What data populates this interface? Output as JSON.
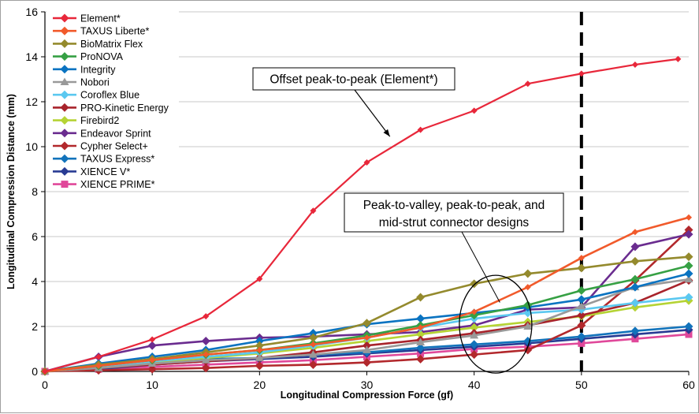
{
  "chart_data": {
    "type": "line",
    "title": "",
    "xlabel": "Longitudinal Compression Force (gf)",
    "ylabel": "Longitudinal Compression Distance (mm)",
    "xlim": [
      0,
      60
    ],
    "ylim": [
      0,
      16
    ],
    "xticks": [
      0,
      10,
      20,
      30,
      40,
      50,
      60
    ],
    "yticks": [
      0,
      2,
      4,
      6,
      8,
      10,
      12,
      14,
      16
    ],
    "grid": "horizontal",
    "legend_position": "top-left",
    "reference_line": {
      "x": 50,
      "style": "dashed",
      "color": "#000000"
    },
    "annotations": [
      {
        "text": "Offset peak-to-peak (Element*)",
        "points_to_series": "Element*",
        "target": [
          32,
          10.1
        ]
      },
      {
        "text_lines": [
          "Peak-to-valley, peak-to-peak, and",
          "mid-strut connector designs"
        ],
        "circle_center": [
          42,
          2.1
        ],
        "target": [
          42.4,
          3.0
        ]
      }
    ],
    "series": [
      {
        "name": "Element*",
        "color": "#e8273a",
        "marker": "diamond-small",
        "x": [
          0,
          5,
          10,
          15,
          20,
          25,
          30,
          35,
          40,
          45,
          50,
          55,
          59
        ],
        "y": [
          0,
          0.65,
          1.42,
          2.45,
          4.12,
          7.15,
          9.3,
          10.75,
          11.6,
          12.8,
          13.25,
          13.65,
          13.9
        ]
      },
      {
        "name": "TAXUS Liberte*",
        "color": "#f15a2b",
        "marker": "diamond-small",
        "x": [
          0,
          5,
          10,
          15,
          20,
          25,
          30,
          35,
          40,
          45,
          50,
          55,
          60
        ],
        "y": [
          0,
          0.25,
          0.5,
          0.75,
          0.95,
          1.2,
          1.5,
          1.95,
          2.65,
          3.75,
          5.05,
          6.2,
          6.85
        ]
      },
      {
        "name": "BioMatrix Flex",
        "color": "#948a2d",
        "marker": "diamond",
        "x": [
          0,
          5,
          10,
          15,
          20,
          25,
          30,
          35,
          40,
          45,
          50,
          55,
          60
        ],
        "y": [
          0,
          0.3,
          0.55,
          0.85,
          1.15,
          1.5,
          2.15,
          3.3,
          3.9,
          4.35,
          4.6,
          4.9,
          5.1
        ]
      },
      {
        "name": "ProNOVA",
        "color": "#36a044",
        "marker": "diamond",
        "x": [
          0,
          5,
          10,
          15,
          20,
          25,
          30,
          35,
          40,
          45,
          50,
          55,
          60
        ],
        "y": [
          0,
          0.25,
          0.5,
          0.75,
          0.95,
          1.25,
          1.6,
          2.05,
          2.5,
          2.95,
          3.6,
          4.1,
          4.7
        ]
      },
      {
        "name": "Integrity",
        "color": "#0a73c1",
        "marker": "diamond",
        "x": [
          0,
          5,
          10,
          15,
          20,
          25,
          30,
          35,
          40,
          45,
          50,
          55,
          60
        ],
        "y": [
          0,
          0.35,
          0.65,
          0.95,
          1.35,
          1.7,
          2.1,
          2.35,
          2.6,
          2.85,
          3.2,
          3.75,
          4.35
        ]
      },
      {
        "name": "Nobori",
        "color": "#999999",
        "marker": "triangle",
        "x": [
          0,
          5,
          10,
          15,
          20,
          25,
          30,
          35,
          40,
          45,
          50,
          55,
          60
        ],
        "y": [
          0,
          0.15,
          0.35,
          0.5,
          0.6,
          0.75,
          0.95,
          1.3,
          1.6,
          2.0,
          2.9,
          3.75,
          4.1
        ]
      },
      {
        "name": "Coroflex Blue",
        "color": "#5bc8f0",
        "marker": "diamond",
        "x": [
          0,
          5,
          10,
          15,
          20,
          25,
          30,
          35,
          40,
          45,
          50,
          55,
          60
        ],
        "y": [
          0,
          0.2,
          0.45,
          0.65,
          0.85,
          1.15,
          1.5,
          1.95,
          2.35,
          2.6,
          2.75,
          3.05,
          3.3
        ]
      },
      {
        "name": "PRO-Kinetic Energy",
        "color": "#a8232b",
        "marker": "diamond",
        "x": [
          0,
          5,
          10,
          15,
          20,
          25,
          30,
          35,
          40,
          45,
          50,
          55,
          60
        ],
        "y": [
          0,
          0.15,
          0.3,
          0.45,
          0.6,
          0.85,
          1.15,
          1.4,
          1.7,
          2.05,
          2.5,
          3.05,
          4.05
        ]
      },
      {
        "name": "Firebird2",
        "color": "#b5d334",
        "marker": "diamond",
        "x": [
          0,
          5,
          10,
          15,
          20,
          25,
          30,
          35,
          40,
          45,
          50,
          55,
          60
        ],
        "y": [
          0,
          0.15,
          0.4,
          0.6,
          0.8,
          1.05,
          1.35,
          1.65,
          1.95,
          2.2,
          2.45,
          2.85,
          3.15
        ]
      },
      {
        "name": "Endeavor Sprint",
        "color": "#6a2c8f",
        "marker": "diamond",
        "x": [
          0,
          5,
          10,
          15,
          20,
          25,
          30,
          35,
          40,
          45,
          50,
          55,
          60
        ],
        "y": [
          0,
          0.65,
          1.15,
          1.35,
          1.5,
          1.55,
          1.65,
          1.75,
          2.05,
          2.75,
          2.85,
          5.55,
          6.1
        ]
      },
      {
        "name": "Cypher Select+",
        "color": "#b2282c",
        "marker": "diamond",
        "x": [
          0,
          5,
          10,
          15,
          20,
          25,
          30,
          35,
          40,
          45,
          50,
          55,
          60
        ],
        "y": [
          0,
          0.05,
          0.1,
          0.15,
          0.25,
          0.3,
          0.4,
          0.55,
          0.75,
          0.95,
          2.05,
          4.05,
          6.3
        ]
      },
      {
        "name": "TAXUS Express*",
        "color": "#1273bb",
        "marker": "diamond",
        "x": [
          0,
          5,
          10,
          15,
          20,
          25,
          30,
          35,
          40,
          45,
          50,
          55,
          60
        ],
        "y": [
          0,
          0.25,
          0.4,
          0.55,
          0.6,
          0.75,
          0.85,
          1.05,
          1.2,
          1.35,
          1.55,
          1.8,
          2.0
        ]
      },
      {
        "name": "XIENCE V*",
        "color": "#283b93",
        "marker": "diamond",
        "x": [
          0,
          5,
          10,
          15,
          20,
          25,
          30,
          35,
          40,
          45,
          50,
          55,
          60
        ],
        "y": [
          0,
          0.1,
          0.3,
          0.45,
          0.55,
          0.65,
          0.8,
          0.95,
          1.1,
          1.25,
          1.45,
          1.65,
          1.85
        ]
      },
      {
        "name": "XIENCE PRIME*",
        "color": "#e0489a",
        "marker": "square",
        "x": [
          0,
          5,
          10,
          15,
          20,
          25,
          30,
          35,
          40,
          45,
          50,
          55,
          60
        ],
        "y": [
          0,
          0.1,
          0.2,
          0.3,
          0.4,
          0.5,
          0.65,
          0.8,
          1.0,
          1.1,
          1.25,
          1.45,
          1.65
        ]
      }
    ]
  }
}
